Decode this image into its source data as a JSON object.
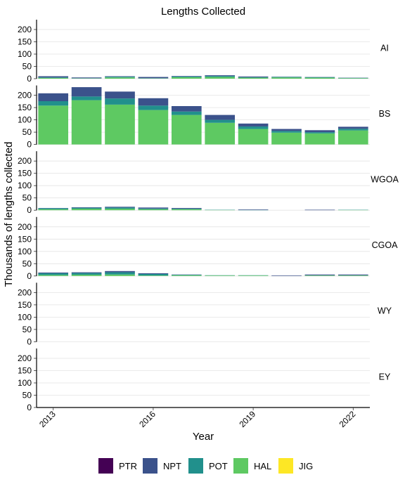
{
  "chart_data": {
    "type": "bar",
    "stacked": true,
    "title": "Lengths Collected",
    "xlabel": "Year",
    "ylabel": "Thousands of lengths collected",
    "x": [
      2013,
      2014,
      2015,
      2016,
      2017,
      2018,
      2019,
      2020,
      2021,
      2022
    ],
    "xticks": [
      "2013",
      "2016",
      "2019",
      "2022"
    ],
    "yticks": [
      0,
      50,
      100,
      150,
      200
    ],
    "ylim": [
      0,
      240
    ],
    "grid": "horizontal",
    "legend_position": "bottom",
    "series_order": [
      "PTR",
      "NPT",
      "POT",
      "HAL",
      "JIG"
    ],
    "colors": {
      "PTR": "#440154",
      "NPT": "#3b528b",
      "POT": "#21908c",
      "HAL": "#5ec962",
      "JIG": "#fde725"
    },
    "panels": [
      {
        "label": "AI",
        "series": [
          {
            "name": "PTR",
            "values": [
              0,
              0,
              0,
              0,
              0,
              0,
              0,
              0,
              0,
              0
            ]
          },
          {
            "name": "NPT",
            "values": [
              5,
              3,
              2,
              5,
              2,
              3,
              3,
              1,
              1,
              1
            ]
          },
          {
            "name": "POT",
            "values": [
              2,
              1,
              3,
              1,
              3,
              4,
              2,
              2,
              2,
              1
            ]
          },
          {
            "name": "HAL",
            "values": [
              3,
              1,
              5,
              1,
              6,
              7,
              4,
              5,
              4,
              2
            ]
          },
          {
            "name": "JIG",
            "values": [
              0,
              0,
              0,
              0,
              0,
              0,
              0,
              0,
              0,
              0
            ]
          }
        ]
      },
      {
        "label": "BS",
        "series": [
          {
            "name": "PTR",
            "values": [
              0,
              0,
              0,
              0,
              0,
              0,
              0,
              0,
              0,
              0
            ]
          },
          {
            "name": "NPT",
            "values": [
              32,
              38,
              28,
              30,
              22,
              20,
              12,
              8,
              8,
              8
            ]
          },
          {
            "name": "POT",
            "values": [
              18,
              15,
              25,
              18,
              14,
              12,
              10,
              7,
              5,
              7
            ]
          },
          {
            "name": "HAL",
            "values": [
              158,
              180,
              162,
              140,
              120,
              88,
              63,
              48,
              45,
              57
            ]
          },
          {
            "name": "JIG",
            "values": [
              0,
              0,
              0,
              0,
              0,
              0,
              0,
              0,
              0,
              0
            ]
          }
        ]
      },
      {
        "label": "WGOA",
        "series": [
          {
            "name": "PTR",
            "values": [
              0,
              0,
              0,
              0,
              0,
              0,
              0,
              0,
              0,
              0
            ]
          },
          {
            "name": "NPT",
            "values": [
              1,
              2,
              3,
              4,
              3,
              0,
              2,
              0,
              2,
              0
            ]
          },
          {
            "name": "POT",
            "values": [
              4,
              4,
              5,
              3,
              2,
              1,
              1,
              0,
              0,
              1
            ]
          },
          {
            "name": "HAL",
            "values": [
              4,
              6,
              6,
              4,
              4,
              1,
              0,
              0,
              0,
              1
            ]
          },
          {
            "name": "JIG",
            "values": [
              0,
              0,
              0,
              0,
              0,
              0,
              0,
              0,
              0,
              0
            ]
          }
        ]
      },
      {
        "label": "CGOA",
        "series": [
          {
            "name": "PTR",
            "values": [
              0,
              0,
              0,
              0,
              0,
              0,
              0,
              0,
              0,
              0
            ]
          },
          {
            "name": "NPT",
            "values": [
              3,
              3,
              5,
              3,
              1,
              0,
              0,
              2,
              3,
              3
            ]
          },
          {
            "name": "POT",
            "values": [
              7,
              7,
              9,
              6,
              2,
              1,
              1,
              0,
              1,
              1
            ]
          },
          {
            "name": "HAL",
            "values": [
              4,
              5,
              6,
              2,
              3,
              2,
              2,
              0,
              2,
              2
            ]
          },
          {
            "name": "JIG",
            "values": [
              0,
              0,
              0,
              0,
              0,
              0,
              0,
              0,
              0,
              0
            ]
          }
        ]
      },
      {
        "label": "WY",
        "series": [
          {
            "name": "PTR",
            "values": [
              0,
              0,
              0,
              0,
              0,
              0,
              0,
              0,
              0,
              0
            ]
          },
          {
            "name": "NPT",
            "values": [
              0,
              0,
              0,
              0,
              0,
              0,
              0,
              0,
              0,
              0
            ]
          },
          {
            "name": "POT",
            "values": [
              0,
              0,
              0,
              0,
              0,
              0,
              0,
              0,
              0,
              0
            ]
          },
          {
            "name": "HAL",
            "values": [
              0,
              0,
              0,
              0,
              0,
              0,
              0,
              0,
              0,
              0
            ]
          },
          {
            "name": "JIG",
            "values": [
              0,
              0,
              0,
              0,
              0,
              0,
              0,
              0,
              0,
              0
            ]
          }
        ]
      },
      {
        "label": "EY",
        "series": [
          {
            "name": "PTR",
            "values": [
              0,
              0,
              0,
              0,
              0,
              0,
              0,
              0,
              0,
              0
            ]
          },
          {
            "name": "NPT",
            "values": [
              0,
              0,
              0,
              0,
              0,
              0,
              0,
              0,
              0,
              0
            ]
          },
          {
            "name": "POT",
            "values": [
              0,
              0,
              0,
              0,
              0,
              0,
              0,
              0,
              0,
              0
            ]
          },
          {
            "name": "HAL",
            "values": [
              0,
              0,
              0,
              0,
              0,
              0,
              0,
              0,
              0,
              0
            ]
          },
          {
            "name": "JIG",
            "values": [
              0,
              0,
              0,
              0,
              0,
              0,
              0,
              0,
              0,
              0
            ]
          }
        ]
      }
    ]
  }
}
